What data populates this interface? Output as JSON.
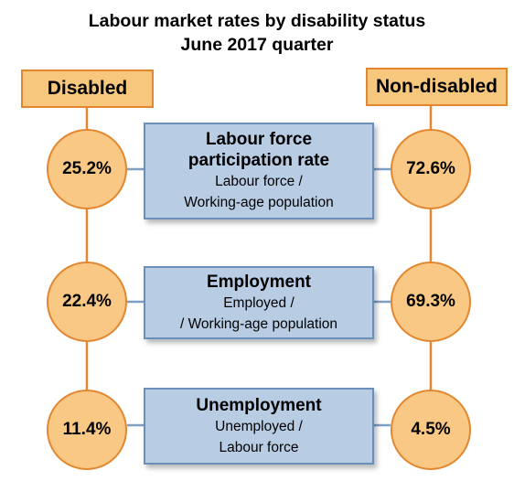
{
  "title": {
    "line1": "Labour market rates by disability status",
    "line2": "June 2017 quarter"
  },
  "columns": {
    "left": "Disabled",
    "right": "Non-disabled"
  },
  "rows": [
    {
      "heading_lines": [
        "Labour force",
        "participation rate"
      ],
      "formula_lines": [
        "Labour force /",
        "Working-age population"
      ],
      "disabled": "25.2%",
      "non_disabled": "72.6%"
    },
    {
      "heading_lines": [
        "Employment"
      ],
      "formula_lines": [
        "Employed /",
        "/ Working-age population"
      ],
      "disabled": "22.4%",
      "non_disabled": "69.3%"
    },
    {
      "heading_lines": [
        "Unemployment"
      ],
      "formula_lines": [
        "Unemployed /",
        "Labour force"
      ],
      "disabled": "11.4%",
      "non_disabled": "4.5%"
    }
  ],
  "colors": {
    "orange_fill": "#f8c884",
    "orange_line": "#e2872f",
    "blue_fill": "#b8cce4",
    "blue_line": "#6a8fb8"
  }
}
